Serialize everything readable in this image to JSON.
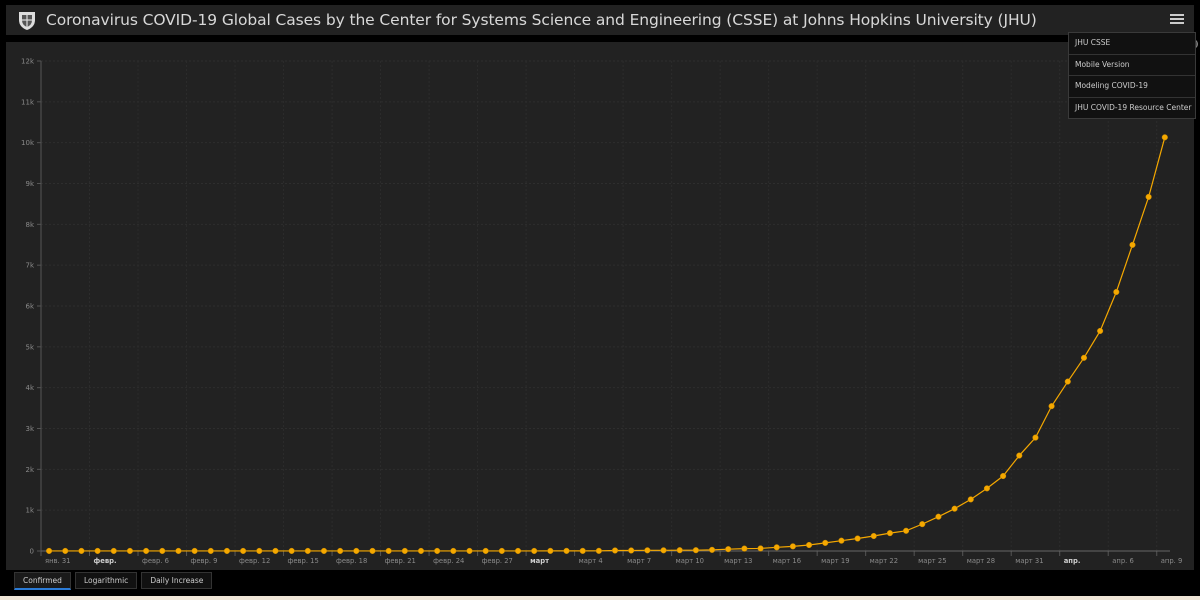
{
  "header": {
    "title": "Coronavirus COVID-19 Global Cases by the Center for Systems Science and Engineering (CSSE) at Johns Hopkins University (JHU)",
    "logo_icon": "jhu-shield-logo",
    "menu_icon": "hamburger-menu-icon"
  },
  "menu": {
    "items": [
      "JHU CSSE",
      "Mobile Version",
      "Modeling COVID-19",
      "JHU COVID-19 Resource Center"
    ]
  },
  "tabs": [
    {
      "label": "Confirmed",
      "active": true
    },
    {
      "label": "Logarithmic",
      "active": false
    },
    {
      "label": "Daily Increase",
      "active": false
    }
  ],
  "colors": {
    "series": "#f5a800",
    "background": "#222222",
    "text": "#8a8a8a"
  },
  "chart_data": {
    "type": "line",
    "title": "",
    "xlabel": "",
    "ylabel": "",
    "ylim": [
      0,
      12000
    ],
    "grid": true,
    "y_ticks": [
      "0",
      "1k",
      "2k",
      "3k",
      "4k",
      "5k",
      "6k",
      "7k",
      "8k",
      "9k",
      "10k",
      "11k",
      "12k"
    ],
    "x_tick_labels": [
      "янв. 31",
      "февр.",
      "февр. 6",
      "февр. 9",
      "февр. 12",
      "февр. 15",
      "февр. 18",
      "февр. 21",
      "февр. 24",
      "февр. 27",
      "март",
      "март 4",
      "март 7",
      "март 10",
      "март 13",
      "март 16",
      "март 19",
      "март 22",
      "март 25",
      "март 28",
      "март 31",
      "апр.",
      "апр. 6",
      "апр. 9"
    ],
    "x_tick_every_days": 3,
    "x_range": [
      "2020-01-31",
      "2020-04-09"
    ],
    "series": [
      {
        "values": [
          2,
          2,
          2,
          2,
          2,
          2,
          2,
          2,
          2,
          2,
          2,
          2,
          2,
          2,
          2,
          2,
          2,
          2,
          2,
          2,
          2,
          2,
          2,
          2,
          2,
          2,
          2,
          2,
          2,
          2,
          2,
          3,
          3,
          3,
          4,
          13,
          13,
          17,
          17,
          20,
          20,
          28,
          45,
          59,
          63,
          90,
          114,
          147,
          199,
          253,
          306,
          367,
          438,
          495,
          658,
          840,
          1036,
          1264,
          1534,
          1836,
          2337,
          2777,
          3548,
          4149,
          4731,
          5389,
          6343,
          7497,
          8672,
          10131
        ]
      }
    ]
  }
}
